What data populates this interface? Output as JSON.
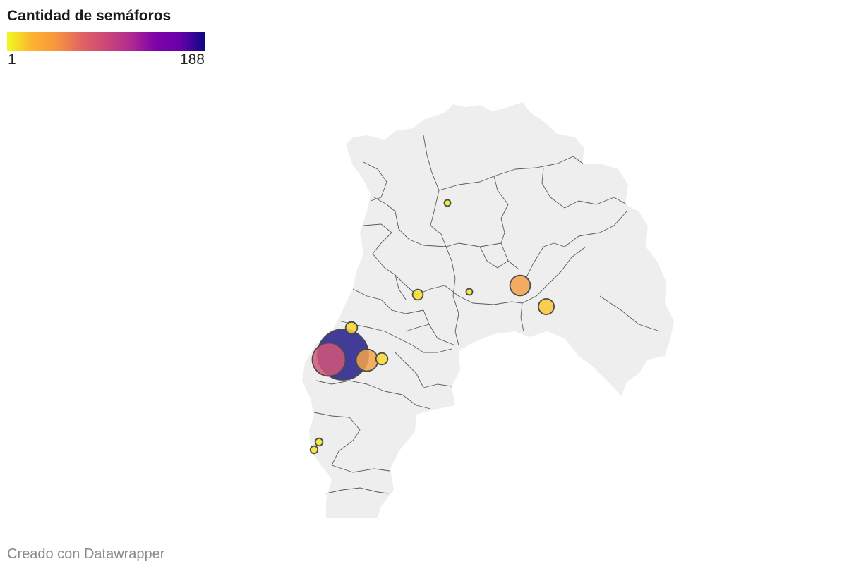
{
  "legend": {
    "title": "Cantidad de semáforos",
    "min_label": "1",
    "max_label": "188",
    "colors": [
      "#f0f921",
      "#fdb32f",
      "#f89540",
      "#e16462",
      "#cc4778",
      "#b12a90",
      "#7e03a8",
      "#6a00a8",
      "#0d0887"
    ]
  },
  "map": {
    "land_color": "#eeeeee",
    "border_color": "#5a5a5a",
    "marker_stroke": "#4a4a4a",
    "markers": [
      {
        "name": "marker-1",
        "value": 188,
        "color": "#231c8a"
      },
      {
        "name": "marker-2",
        "value": 80,
        "color": "#d05577"
      },
      {
        "name": "marker-3",
        "value": 35,
        "color": "#f5a24a"
      },
      {
        "name": "marker-4",
        "value": 30,
        "color": "#f59f4b"
      },
      {
        "name": "marker-5",
        "value": 18,
        "color": "#fbc533"
      },
      {
        "name": "marker-6",
        "value": 10,
        "color": "#fbd72f"
      },
      {
        "name": "marker-7",
        "value": 10,
        "color": "#f9d52c"
      },
      {
        "name": "marker-8",
        "value": 8,
        "color": "#f7df27"
      },
      {
        "name": "marker-9",
        "value": 4,
        "color": "#f3e524"
      },
      {
        "name": "marker-10",
        "value": 4,
        "color": "#f3e524"
      },
      {
        "name": "marker-11",
        "value": 1,
        "color": "#f0ea21"
      },
      {
        "name": "marker-12",
        "value": 1,
        "color": "#f0ea21"
      }
    ]
  },
  "footer": {
    "credit": "Creado con Datawrapper"
  }
}
